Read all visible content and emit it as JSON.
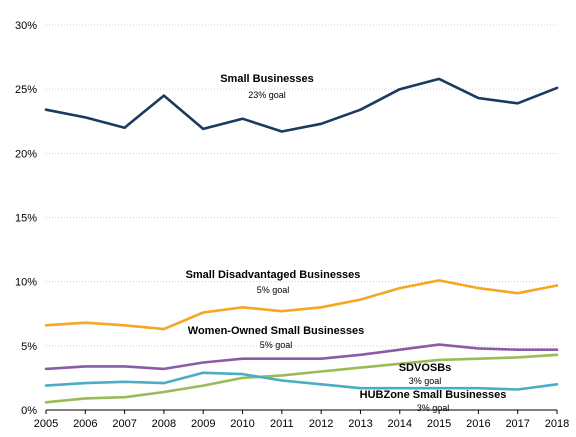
{
  "chart_data": {
    "type": "line",
    "x": [
      2005,
      2006,
      2007,
      2008,
      2009,
      2010,
      2011,
      2012,
      2013,
      2014,
      2015,
      2016,
      2017,
      2018
    ],
    "x_tick_labels": [
      "2005",
      "2006",
      "2007",
      "2008",
      "2009",
      "2010",
      "2011",
      "2012",
      "2013",
      "2014",
      "2015",
      "2016",
      "2017",
      "2018"
    ],
    "ylim": [
      0,
      30
    ],
    "y_ticks": [
      0,
      5,
      10,
      15,
      20,
      25,
      30
    ],
    "y_tick_labels": [
      "0%",
      "5%",
      "10%",
      "15%",
      "20%",
      "25%",
      "30%"
    ],
    "grid": true,
    "legend": "none",
    "series": [
      {
        "name": "Small Businesses",
        "goal_label": "23% goal",
        "color": "#1a3a5f",
        "values": [
          23.4,
          22.8,
          22.0,
          24.5,
          21.9,
          22.7,
          21.7,
          22.3,
          23.4,
          25.0,
          25.8,
          24.3,
          23.9,
          25.1
        ]
      },
      {
        "name": "Small Disadvantaged Businesses",
        "goal_label": "5% goal",
        "color": "#f5a623",
        "values": [
          6.6,
          6.8,
          6.6,
          6.3,
          7.6,
          8.0,
          7.7,
          8.0,
          8.6,
          9.5,
          10.1,
          9.5,
          9.1,
          9.7
        ]
      },
      {
        "name": "Women-Owned Small Businesses",
        "goal_label": "5% goal",
        "color": "#8b5ba6",
        "values": [
          3.2,
          3.4,
          3.4,
          3.2,
          3.7,
          4.0,
          4.0,
          4.0,
          4.3,
          4.7,
          5.1,
          4.8,
          4.7,
          4.7
        ]
      },
      {
        "name": "SDVOSBs",
        "goal_label": "3% goal",
        "color": "#9bbb59",
        "values": [
          0.6,
          0.9,
          1.0,
          1.4,
          1.9,
          2.5,
          2.7,
          3.0,
          3.3,
          3.6,
          3.9,
          4.0,
          4.1,
          4.3
        ]
      },
      {
        "name": "HUBZone Small Businesses",
        "goal_label": "3% goal",
        "color": "#4bacc6",
        "values": [
          1.9,
          2.1,
          2.2,
          2.1,
          2.9,
          2.8,
          2.3,
          2.0,
          1.7,
          1.7,
          1.7,
          1.7,
          1.6,
          2.0
        ]
      }
    ]
  }
}
